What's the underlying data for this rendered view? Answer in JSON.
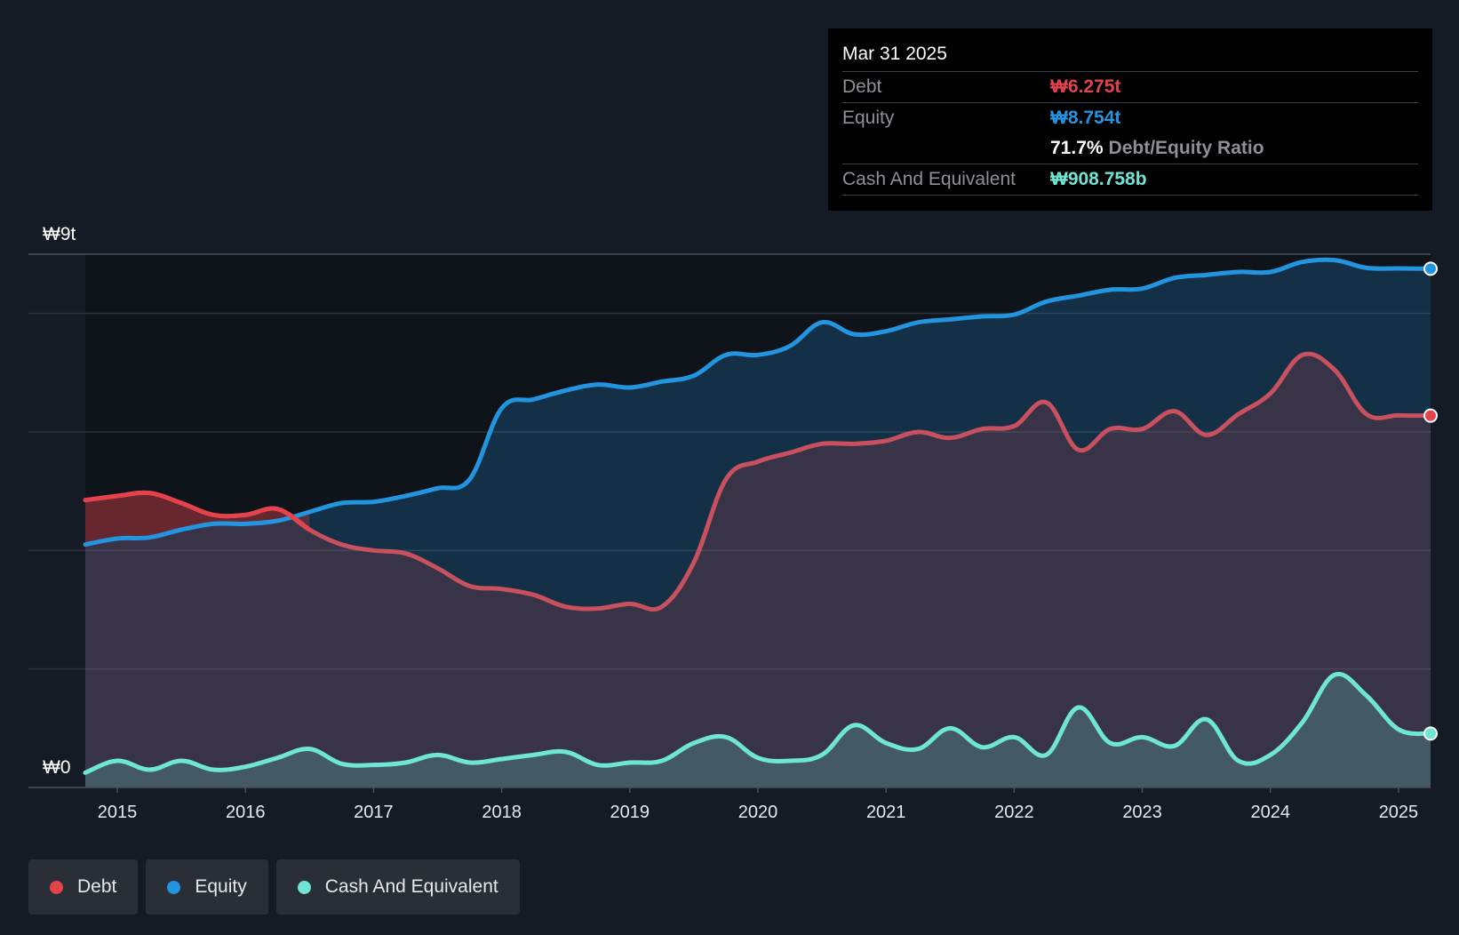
{
  "tooltip": {
    "date": "Mar 31 2025",
    "debt_label": "Debt",
    "debt_value": "₩6.275t",
    "equity_label": "Equity",
    "equity_value": "₩8.754t",
    "ratio_value": "71.7%",
    "ratio_label": "Debt/Equity Ratio",
    "cash_label": "Cash And Equivalent",
    "cash_value": "₩908.758b"
  },
  "legend": {
    "debt": "Debt",
    "equity": "Equity",
    "cash": "Cash And Equivalent"
  },
  "colors": {
    "debt": "#e5434b",
    "equity": "#2394df",
    "cash": "#6fe5d3",
    "background": "#151b24"
  },
  "chart_data": {
    "type": "line",
    "title": "",
    "xlabel": "",
    "ylabel": "",
    "ylim": [
      0,
      9
    ],
    "y_unit": "₩ trillions",
    "y_tick_labels": [
      "₩0",
      "₩9t"
    ],
    "x_tick_labels": [
      "2015",
      "2016",
      "2017",
      "2018",
      "2019",
      "2020",
      "2021",
      "2022",
      "2023",
      "2024",
      "2025"
    ],
    "x_tick_values": [
      2015,
      2016,
      2017,
      2018,
      2019,
      2020,
      2021,
      2022,
      2023,
      2024,
      2025
    ],
    "xlim": [
      2014.75,
      2025.25
    ],
    "series": [
      {
        "name": "Debt",
        "key": "debt",
        "x": [
          2014.75,
          2015.0,
          2015.25,
          2015.5,
          2015.75,
          2016.0,
          2016.25,
          2016.5,
          2016.75,
          2017.0,
          2017.25,
          2017.5,
          2017.75,
          2018.0,
          2018.25,
          2018.5,
          2018.75,
          2019.0,
          2019.25,
          2019.5,
          2019.75,
          2020.0,
          2020.25,
          2020.5,
          2020.75,
          2021.0,
          2021.25,
          2021.5,
          2021.75,
          2022.0,
          2022.25,
          2022.5,
          2022.75,
          2023.0,
          2023.25,
          2023.5,
          2023.75,
          2024.0,
          2024.25,
          2024.5,
          2024.75,
          2025.0,
          2025.25
        ],
        "values": [
          4.85,
          4.92,
          4.97,
          4.8,
          4.6,
          4.6,
          4.7,
          4.35,
          4.1,
          4.0,
          3.95,
          3.7,
          3.4,
          3.35,
          3.25,
          3.05,
          3.02,
          3.1,
          3.05,
          3.8,
          5.2,
          5.5,
          5.65,
          5.8,
          5.8,
          5.85,
          6.0,
          5.9,
          6.05,
          6.1,
          6.5,
          5.7,
          6.05,
          6.05,
          6.35,
          5.95,
          6.3,
          6.65,
          7.3,
          7.05,
          6.3,
          6.28,
          6.275
        ]
      },
      {
        "name": "Equity",
        "key": "equity",
        "x": [
          2014.75,
          2015.0,
          2015.25,
          2015.5,
          2015.75,
          2016.0,
          2016.25,
          2016.5,
          2016.75,
          2017.0,
          2017.25,
          2017.5,
          2017.75,
          2018.0,
          2018.25,
          2018.5,
          2018.75,
          2019.0,
          2019.25,
          2019.5,
          2019.75,
          2020.0,
          2020.25,
          2020.5,
          2020.75,
          2021.0,
          2021.25,
          2021.5,
          2021.75,
          2022.0,
          2022.25,
          2022.5,
          2022.75,
          2023.0,
          2023.25,
          2023.5,
          2023.75,
          2024.0,
          2024.25,
          2024.5,
          2024.75,
          2025.0,
          2025.25
        ],
        "values": [
          4.1,
          4.2,
          4.22,
          4.35,
          4.45,
          4.45,
          4.5,
          4.65,
          4.8,
          4.82,
          4.92,
          5.05,
          5.2,
          6.4,
          6.55,
          6.7,
          6.8,
          6.75,
          6.85,
          6.95,
          7.3,
          7.3,
          7.45,
          7.85,
          7.65,
          7.7,
          7.85,
          7.9,
          7.95,
          7.98,
          8.2,
          8.3,
          8.4,
          8.42,
          8.6,
          8.65,
          8.7,
          8.7,
          8.87,
          8.9,
          8.77,
          8.76,
          8.754
        ]
      },
      {
        "name": "Cash And Equivalent",
        "key": "cash",
        "x": [
          2014.75,
          2015.0,
          2015.25,
          2015.5,
          2015.75,
          2016.0,
          2016.25,
          2016.5,
          2016.75,
          2017.0,
          2017.25,
          2017.5,
          2017.75,
          2018.0,
          2018.25,
          2018.5,
          2018.75,
          2019.0,
          2019.25,
          2019.5,
          2019.75,
          2020.0,
          2020.25,
          2020.5,
          2020.75,
          2021.0,
          2021.25,
          2021.5,
          2021.75,
          2022.0,
          2022.25,
          2022.5,
          2022.75,
          2023.0,
          2023.25,
          2023.5,
          2023.75,
          2024.0,
          2024.25,
          2024.5,
          2024.75,
          2025.0,
          2025.25
        ],
        "values": [
          0.25,
          0.45,
          0.3,
          0.45,
          0.3,
          0.35,
          0.5,
          0.65,
          0.4,
          0.38,
          0.42,
          0.55,
          0.42,
          0.48,
          0.55,
          0.6,
          0.38,
          0.42,
          0.45,
          0.75,
          0.85,
          0.5,
          0.45,
          0.55,
          1.05,
          0.75,
          0.65,
          1.0,
          0.68,
          0.85,
          0.55,
          1.35,
          0.75,
          0.85,
          0.7,
          1.15,
          0.45,
          0.55,
          1.1,
          1.9,
          1.55,
          0.98,
          0.909
        ]
      }
    ]
  }
}
